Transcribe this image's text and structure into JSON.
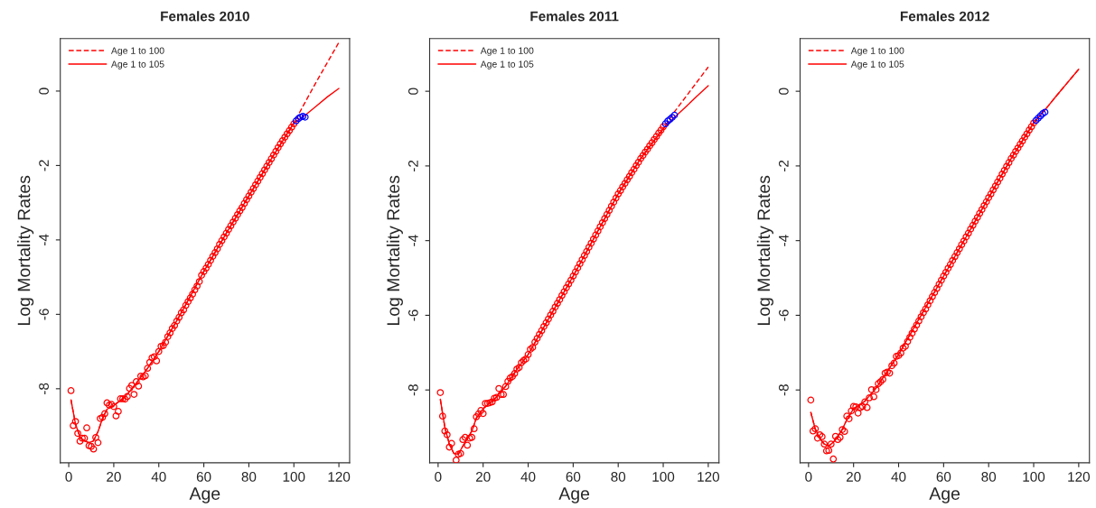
{
  "chart_data": [
    {
      "type": "scatter",
      "title": "Females 2010",
      "xlabel": "Age",
      "ylabel": "Log Mortality Rates",
      "xlim": [
        -3.76,
        124.76
      ],
      "ylim": [
        -9.99,
        1.41
      ],
      "xticks": [
        0,
        20,
        40,
        60,
        80,
        100,
        120
      ],
      "yticks": [
        -8,
        -6,
        -4,
        -2,
        0
      ],
      "legend": "top left",
      "series": [
        {
          "marker": "circle",
          "color": "#ff0000",
          "x": [
            1,
            2,
            3,
            4,
            5,
            6,
            7,
            8,
            9,
            10,
            11,
            12,
            13,
            14,
            15,
            16,
            17,
            18,
            19,
            20,
            21,
            22,
            23,
            24,
            25,
            26,
            27,
            28,
            29,
            30,
            31,
            32,
            33,
            34,
            35,
            36,
            37,
            38,
            39,
            40,
            41,
            42,
            43,
            44,
            45,
            46,
            47,
            48,
            49,
            50,
            51,
            52,
            53,
            54,
            55,
            56,
            57,
            58,
            59,
            60,
            61,
            62,
            63,
            64,
            65,
            66,
            67,
            68,
            69,
            70,
            71,
            72,
            73,
            74,
            75,
            76,
            77,
            78,
            79,
            80,
            81,
            82,
            83,
            84,
            85,
            86,
            87,
            88,
            89,
            90,
            91,
            92,
            93,
            94,
            95,
            96,
            97,
            98,
            99,
            100
          ],
          "values": [
            -8.05,
            -8.99,
            -8.88,
            -9.2,
            -9.41,
            -9.33,
            -9.33,
            -9.05,
            -9.53,
            -9.55,
            -9.62,
            -9.31,
            -9.45,
            -8.8,
            -8.77,
            -8.67,
            -8.38,
            -8.44,
            -8.42,
            -8.48,
            -8.73,
            -8.61,
            -8.27,
            -8.27,
            -8.28,
            -8.21,
            -7.99,
            -7.91,
            -8.15,
            -7.81,
            -7.93,
            -7.66,
            -7.68,
            -7.65,
            -7.45,
            -7.29,
            -7.17,
            -7.14,
            -7.25,
            -7.0,
            -6.86,
            -6.84,
            -6.75,
            -6.6,
            -6.5,
            -6.38,
            -6.3,
            -6.18,
            -6.08,
            -5.96,
            -5.88,
            -5.76,
            -5.66,
            -5.56,
            -5.46,
            -5.34,
            -5.24,
            -5.12,
            -4.95,
            -4.85,
            -4.76,
            -4.66,
            -4.55,
            -4.44,
            -4.34,
            -4.24,
            -4.12,
            -4.02,
            -3.92,
            -3.82,
            -3.72,
            -3.62,
            -3.52,
            -3.42,
            -3.32,
            -3.22,
            -3.13,
            -3.02,
            -2.92,
            -2.82,
            -2.72,
            -2.62,
            -2.52,
            -2.42,
            -2.32,
            -2.22,
            -2.12,
            -2.02,
            -1.92,
            -1.82,
            -1.72,
            -1.62,
            -1.52,
            -1.42,
            -1.33,
            -1.24,
            -1.15,
            -1.06,
            -0.97,
            -0.88
          ]
        },
        {
          "marker": "circle",
          "color": "#0000ff",
          "x": [
            101,
            102,
            103,
            104,
            105
          ],
          "values": [
            -0.8,
            -0.74,
            -0.7,
            -0.68,
            -0.7
          ]
        },
        {
          "type": "line",
          "name": "Age 1 to 100",
          "line_style": "dashed",
          "color": "#ff0000",
          "x": [
            1,
            3,
            5,
            7,
            9,
            11,
            13,
            15,
            17,
            20,
            25,
            30,
            35,
            40,
            50,
            60,
            70,
            80,
            90,
            100,
            105,
            110,
            115,
            120
          ],
          "values": [
            -8.3,
            -8.95,
            -9.3,
            -9.4,
            -9.45,
            -9.4,
            -9.15,
            -8.8,
            -8.55,
            -8.45,
            -8.22,
            -7.85,
            -7.45,
            -7.0,
            -5.96,
            -4.85,
            -3.82,
            -2.82,
            -1.82,
            -0.86,
            -0.3,
            0.25,
            0.78,
            1.31
          ]
        },
        {
          "type": "line",
          "name": "Age 1 to 105",
          "line_style": "solid",
          "color": "#ff0000",
          "x": [
            1,
            3,
            5,
            7,
            9,
            11,
            13,
            15,
            17,
            20,
            25,
            30,
            35,
            40,
            50,
            60,
            70,
            80,
            90,
            100,
            105,
            110,
            115,
            120
          ],
          "values": [
            -8.3,
            -8.95,
            -9.3,
            -9.4,
            -9.45,
            -9.4,
            -9.15,
            -8.8,
            -8.55,
            -8.45,
            -8.22,
            -7.85,
            -7.45,
            -7.0,
            -5.96,
            -4.85,
            -3.82,
            -2.82,
            -1.82,
            -0.86,
            -0.65,
            -0.4,
            -0.15,
            0.07
          ]
        }
      ]
    },
    {
      "type": "scatter",
      "title": "Females 2011",
      "xlabel": "Age",
      "ylabel": "Log Mortality Rates",
      "xlim": [
        -3.76,
        124.76
      ],
      "ylim": [
        -9.95,
        1.41
      ],
      "xticks": [
        0,
        20,
        40,
        60,
        80,
        100,
        120
      ],
      "yticks": [
        -8,
        -6,
        -4,
        -2,
        0
      ],
      "legend": "top left",
      "series": [
        {
          "marker": "circle",
          "color": "#ff0000",
          "x": [
            1,
            2,
            3,
            4,
            5,
            6,
            7,
            8,
            9,
            10,
            11,
            12,
            13,
            14,
            15,
            16,
            17,
            18,
            19,
            20,
            21,
            22,
            23,
            24,
            25,
            26,
            27,
            28,
            29,
            30,
            31,
            32,
            33,
            34,
            35,
            36,
            37,
            38,
            39,
            40,
            41,
            42,
            43,
            44,
            45,
            46,
            47,
            48,
            49,
            50,
            51,
            52,
            53,
            54,
            55,
            56,
            57,
            58,
            59,
            60,
            61,
            62,
            63,
            64,
            65,
            66,
            67,
            68,
            69,
            70,
            71,
            72,
            73,
            74,
            75,
            76,
            77,
            78,
            79,
            80,
            81,
            82,
            83,
            84,
            85,
            86,
            87,
            88,
            89,
            90,
            91,
            92,
            93,
            94,
            95,
            96,
            97,
            98,
            99,
            100
          ],
          "values": [
            -8.07,
            -8.7,
            -9.1,
            -9.2,
            -9.53,
            -9.43,
            null,
            -9.88,
            -9.72,
            -9.7,
            -9.33,
            -9.27,
            -9.48,
            -9.29,
            -9.27,
            -9.04,
            -8.72,
            -8.64,
            -8.55,
            -8.63,
            -8.36,
            -8.36,
            -8.34,
            -8.32,
            -8.22,
            -8.2,
            -7.96,
            -8.12,
            -8.12,
            -7.91,
            -7.77,
            -7.68,
            -7.64,
            -7.56,
            -7.44,
            -7.4,
            -7.27,
            -7.21,
            -7.17,
            -7.05,
            -6.91,
            -6.86,
            -6.72,
            -6.62,
            -6.51,
            -6.41,
            -6.3,
            -6.2,
            -6.1,
            -5.99,
            -5.89,
            -5.78,
            -5.68,
            -5.58,
            -5.47,
            -5.37,
            -5.26,
            -5.16,
            -5.06,
            -4.95,
            -4.84,
            -4.73,
            -4.62,
            -4.51,
            -4.4,
            -4.29,
            -4.18,
            -4.07,
            -3.96,
            -3.85,
            -3.74,
            -3.63,
            -3.52,
            -3.41,
            -3.3,
            -3.19,
            -3.08,
            -2.97,
            -2.86,
            -2.75,
            -2.66,
            -2.56,
            -2.47,
            -2.37,
            -2.28,
            -2.18,
            -2.09,
            -1.99,
            -1.9,
            -1.8,
            -1.72,
            -1.63,
            -1.55,
            -1.46,
            -1.38,
            -1.29,
            -1.21,
            -1.12,
            -1.04,
            -0.95
          ]
        },
        {
          "marker": "circle",
          "color": "#0000ff",
          "x": [
            101,
            102,
            103,
            104,
            105
          ],
          "values": [
            -0.87,
            -0.8,
            -0.75,
            -0.7,
            -0.64
          ]
        },
        {
          "type": "line",
          "name": "Age 1 to 100",
          "line_style": "dashed",
          "color": "#ff0000",
          "x": [
            1,
            3,
            5,
            7,
            9,
            11,
            13,
            15,
            17,
            20,
            25,
            30,
            35,
            40,
            50,
            60,
            70,
            80,
            90,
            100,
            105,
            110,
            115,
            120
          ],
          "values": [
            -8.25,
            -9.0,
            -9.45,
            -9.7,
            -9.72,
            -9.5,
            -9.3,
            -9.1,
            -8.75,
            -8.5,
            -8.25,
            -7.9,
            -7.45,
            -7.05,
            -6.0,
            -4.95,
            -3.85,
            -2.75,
            -1.8,
            -1.0,
            -0.55,
            -0.15,
            0.25,
            0.65
          ]
        },
        {
          "type": "line",
          "name": "Age 1 to 105",
          "line_style": "solid",
          "color": "#ff0000",
          "x": [
            1,
            3,
            5,
            7,
            9,
            11,
            13,
            15,
            17,
            20,
            25,
            30,
            35,
            40,
            50,
            60,
            70,
            80,
            90,
            100,
            105,
            110,
            115,
            120
          ],
          "values": [
            -8.25,
            -9.0,
            -9.45,
            -9.7,
            -9.72,
            -9.5,
            -9.3,
            -9.1,
            -8.75,
            -8.5,
            -8.25,
            -7.9,
            -7.45,
            -7.05,
            -6.0,
            -4.95,
            -3.85,
            -2.75,
            -1.8,
            -1.0,
            -0.7,
            -0.42,
            -0.13,
            0.15
          ]
        }
      ]
    },
    {
      "type": "scatter",
      "title": "Females 2012",
      "xlabel": "Age",
      "ylabel": "Log Mortality Rates",
      "xlim": [
        -3.76,
        124.76
      ],
      "ylim": [
        -9.95,
        1.41
      ],
      "xticks": [
        0,
        20,
        40,
        60,
        80,
        100,
        120
      ],
      "yticks": [
        -8,
        -6,
        -4,
        -2,
        0
      ],
      "legend": "top left",
      "series": [
        {
          "marker": "circle",
          "color": "#ff0000",
          "x": [
            1,
            2,
            3,
            4,
            5,
            6,
            7,
            8,
            9,
            10,
            11,
            12,
            13,
            14,
            15,
            16,
            17,
            18,
            19,
            20,
            21,
            22,
            23,
            24,
            25,
            26,
            27,
            28,
            29,
            30,
            31,
            32,
            33,
            34,
            35,
            36,
            37,
            38,
            39,
            40,
            41,
            42,
            43,
            44,
            45,
            46,
            47,
            48,
            49,
            50,
            51,
            52,
            53,
            54,
            55,
            56,
            57,
            58,
            59,
            60,
            61,
            62,
            63,
            64,
            65,
            66,
            67,
            68,
            69,
            70,
            71,
            72,
            73,
            74,
            75,
            76,
            77,
            78,
            79,
            80,
            81,
            82,
            83,
            84,
            85,
            86,
            87,
            88,
            89,
            90,
            91,
            92,
            93,
            94,
            95,
            96,
            97,
            98,
            99,
            100
          ],
          "values": [
            -8.27,
            -9.1,
            -9.04,
            -9.29,
            -9.2,
            -9.25,
            -9.45,
            -9.63,
            -9.62,
            -9.45,
            -9.85,
            -9.24,
            -9.33,
            -9.27,
            -9.06,
            -9.11,
            -8.7,
            -8.77,
            -8.56,
            -8.44,
            -8.45,
            -8.62,
            -8.47,
            -8.44,
            -8.32,
            -8.47,
            -8.21,
            -7.99,
            -8.18,
            -7.99,
            -7.83,
            -7.78,
            -7.72,
            -7.55,
            -7.52,
            -7.55,
            -7.35,
            -7.28,
            -7.1,
            -7.08,
            -7.01,
            -6.88,
            -6.83,
            -6.7,
            -6.59,
            -6.48,
            -6.37,
            -6.26,
            -6.15,
            -6.04,
            -5.93,
            -5.83,
            -5.72,
            -5.61,
            -5.5,
            -5.39,
            -5.28,
            -5.17,
            -5.06,
            -4.95,
            -4.85,
            -4.74,
            -4.64,
            -4.53,
            -4.43,
            -4.32,
            -4.22,
            -4.11,
            -4.01,
            -3.9,
            -3.8,
            -3.69,
            -3.59,
            -3.48,
            -3.38,
            -3.27,
            -3.17,
            -3.06,
            -2.96,
            -2.85,
            -2.75,
            -2.64,
            -2.54,
            -2.43,
            -2.33,
            -2.22,
            -2.12,
            -2.01,
            -1.91,
            -1.8,
            -1.71,
            -1.61,
            -1.52,
            -1.42,
            -1.33,
            -1.23,
            -1.14,
            -1.04,
            -0.95,
            -0.85
          ]
        },
        {
          "marker": "circle",
          "color": "#0000ff",
          "x": [
            101,
            102,
            103,
            104,
            105
          ],
          "values": [
            -0.78,
            -0.72,
            -0.66,
            -0.6,
            -0.56
          ]
        },
        {
          "type": "line",
          "name": "Age 1 to 100",
          "line_style": "dashed",
          "color": "#ff0000",
          "x": [
            1,
            3,
            5,
            7,
            9,
            11,
            13,
            15,
            17,
            20,
            25,
            30,
            35,
            40,
            50,
            60,
            70,
            80,
            90,
            100,
            105,
            110,
            115,
            120
          ],
          "values": [
            -8.6,
            -9.05,
            -9.3,
            -9.45,
            -9.5,
            -9.4,
            -9.25,
            -9.05,
            -8.8,
            -8.5,
            -8.3,
            -7.95,
            -7.5,
            -7.05,
            -6.0,
            -4.95,
            -3.9,
            -2.85,
            -1.8,
            -0.85,
            -0.5,
            -0.13,
            0.23,
            0.59
          ]
        },
        {
          "type": "line",
          "name": "Age 1 to 105",
          "line_style": "solid",
          "color": "#ff0000",
          "x": [
            1,
            3,
            5,
            7,
            9,
            11,
            13,
            15,
            17,
            20,
            25,
            30,
            35,
            40,
            50,
            60,
            70,
            80,
            90,
            100,
            105,
            110,
            115,
            120
          ],
          "values": [
            -8.6,
            -9.05,
            -9.3,
            -9.45,
            -9.5,
            -9.4,
            -9.25,
            -9.05,
            -8.8,
            -8.5,
            -8.3,
            -7.95,
            -7.5,
            -7.05,
            -6.0,
            -4.95,
            -3.9,
            -2.85,
            -1.8,
            -0.85,
            -0.5,
            -0.13,
            0.23,
            0.59
          ]
        }
      ]
    }
  ]
}
